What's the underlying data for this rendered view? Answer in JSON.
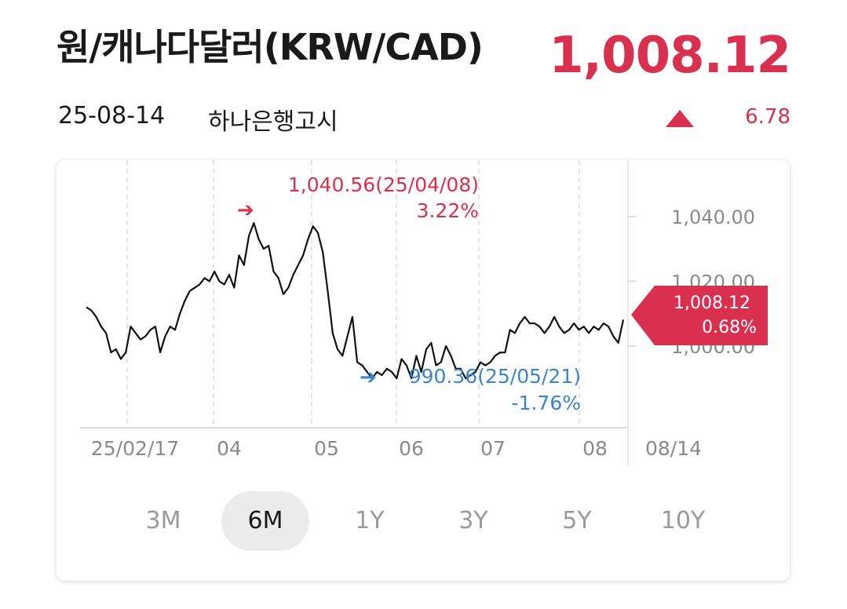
{
  "header": {
    "title": "원/캐나다달러(KRW/CAD)",
    "price": "1,008.12",
    "date": "25-08-14",
    "source": "하나은행고시",
    "change": "6.78"
  },
  "colors": {
    "up": "#d9304f",
    "down": "#3a84cc",
    "line": "#111111"
  },
  "chart_data": {
    "type": "line",
    "x_tick_labels": [
      "25/02/17",
      "04",
      "05",
      "06",
      "07",
      "08",
      "08/14"
    ],
    "y_tick_labels": [
      "1,040.00",
      "1,020.00",
      "1,000.00"
    ],
    "ylim": [
      975,
      1055
    ],
    "series": [
      {
        "values": [
          1012,
          1011,
          1009,
          1006,
          1004,
          998,
          999,
          996,
          998,
          1006,
          1004,
          1002,
          1003,
          1005,
          1006,
          998,
          1003,
          1006,
          1005,
          1010,
          1014,
          1017,
          1018,
          1019,
          1021,
          1020,
          1023,
          1020,
          1019,
          1022,
          1018,
          1028,
          1025,
          1034,
          1038,
          1033,
          1030,
          1031,
          1023,
          1021,
          1016,
          1018,
          1022,
          1025,
          1028,
          1033,
          1037,
          1035,
          1029,
          1017,
          1004,
          999,
          997,
          1003,
          1009,
          995,
          994,
          992,
          990,
          992,
          991,
          993,
          992,
          990,
          996,
          994,
          990,
          997,
          992,
          999,
          1001,
          994,
          995,
          1000,
          997,
          993,
          993,
          990,
          991,
          992,
          995,
          994,
          995,
          997,
          998,
          998,
          1005,
          1004,
          1007,
          1009,
          1007,
          1007,
          1006,
          1004,
          1006,
          1009,
          1006,
          1004,
          1005,
          1007,
          1005,
          1006,
          1004,
          1006,
          1005,
          1007,
          1006,
          1003,
          1001,
          1008.12
        ],
        "high": {
          "value": "1,040.56",
          "date": "25/04/08",
          "percent": "3.22%"
        },
        "low": {
          "value": "990.36",
          "date": "25/05/21",
          "percent": "-1.76%"
        },
        "last": {
          "value": "1,008.12",
          "percent": "0.68%"
        }
      }
    ]
  },
  "ranges": [
    "3M",
    "6M",
    "1Y",
    "3Y",
    "5Y",
    "10Y"
  ],
  "active_range": "6M"
}
